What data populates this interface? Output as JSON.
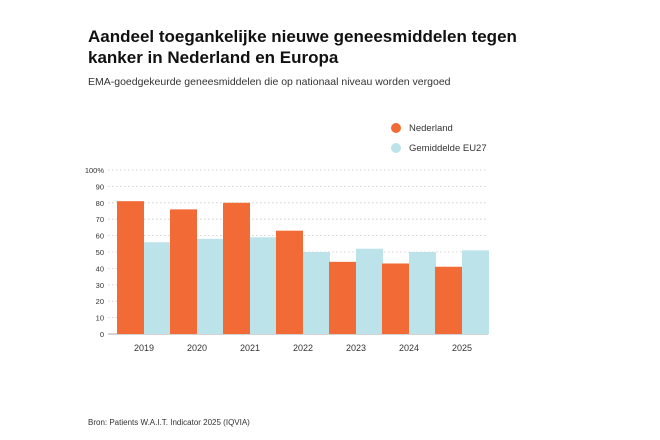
{
  "title": "Aandeel toegankelijke nieuwe geneesmiddelen tegen kanker in Nederland en Europa",
  "subtitle": "EMA-goedgekeurde geneesmiddelen die op nationaal niveau worden vergoed",
  "source": "Bron: Patients W.A.I.T. Indicator 2025 (IQVIA)",
  "colors": {
    "nederland": "#f26a35",
    "eu27": "#bde3ea",
    "grid": "#c8c8c8"
  },
  "chart_data": {
    "type": "bar",
    "title": "Aandeel toegankelijke nieuwe geneesmiddelen tegen kanker in Nederland en Europa",
    "subtitle": "EMA-goedgekeurde geneesmiddelen die op nationaal niveau worden vergoed",
    "categories": [
      "2019",
      "2020",
      "2021",
      "2022",
      "2023",
      "2024",
      "2025"
    ],
    "series": [
      {
        "name": "Nederland",
        "values": [
          81,
          76,
          80,
          63,
          44,
          43,
          41
        ]
      },
      {
        "name": "Gemiddelde EU27",
        "values": [
          56,
          58,
          59,
          50,
          52,
          50,
          51
        ]
      }
    ],
    "yticks": [
      "0",
      "10",
      "20",
      "30",
      "40",
      "50",
      "60",
      "70",
      "80",
      "90",
      "100%"
    ],
    "ylim": [
      0,
      100
    ],
    "grid": true,
    "legend": "top-right"
  }
}
